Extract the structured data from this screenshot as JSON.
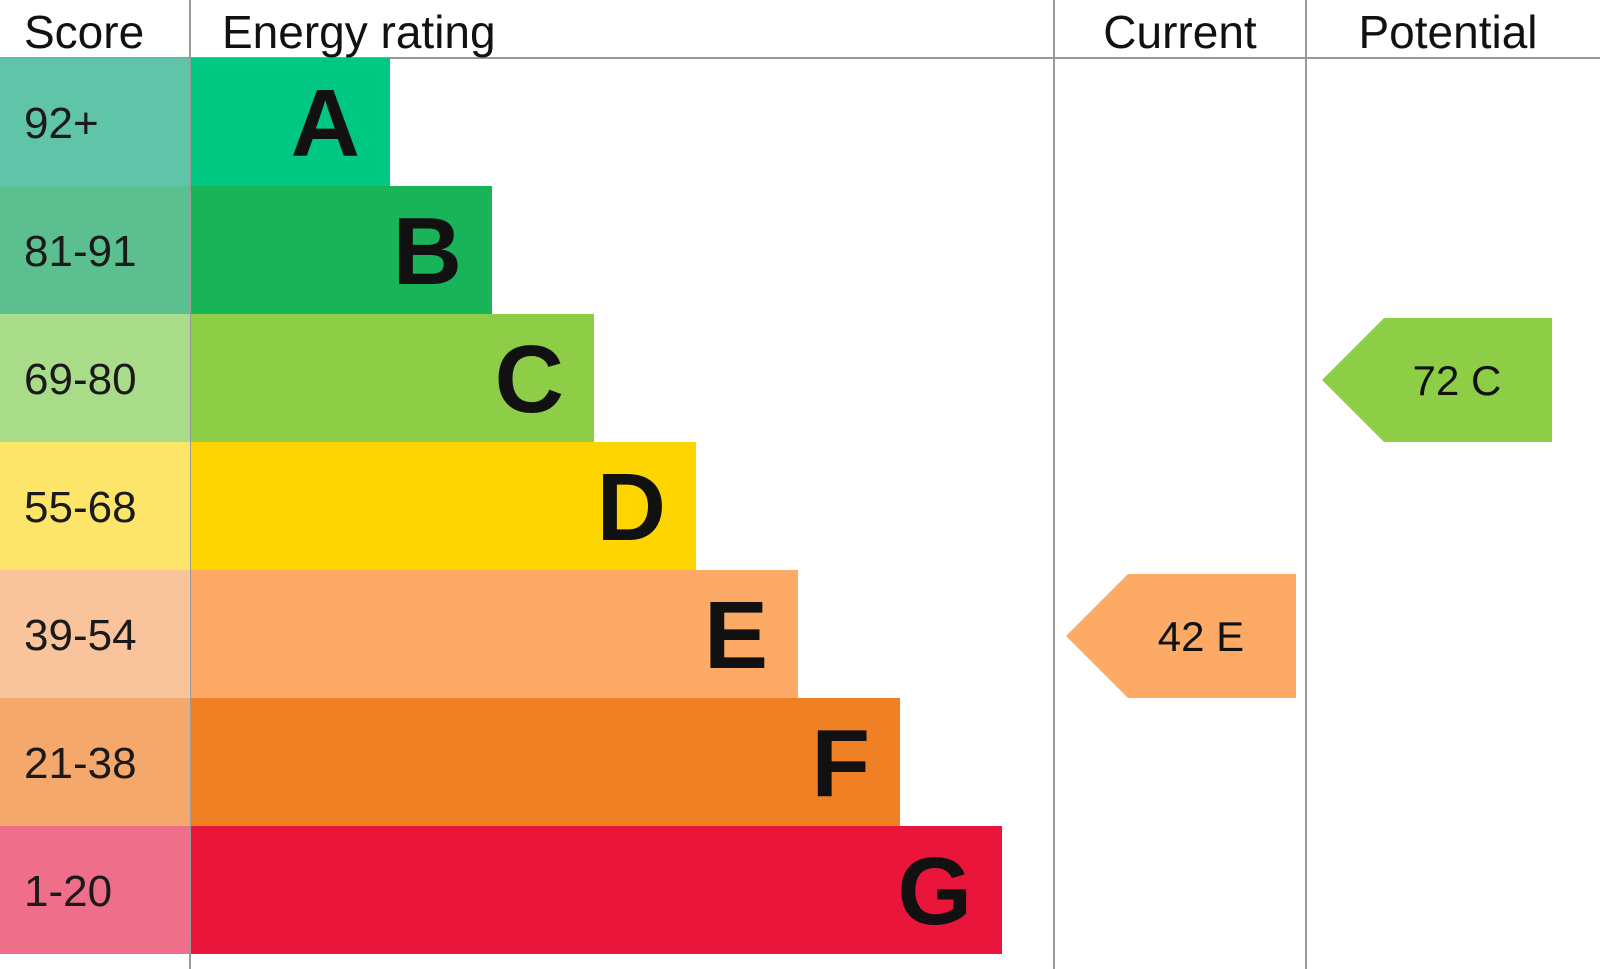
{
  "chart_data": {
    "type": "bar",
    "headers": {
      "score": "Score",
      "rating": "Energy rating",
      "current": "Current",
      "potential": "Potential"
    },
    "bands": [
      {
        "letter": "A",
        "score": "92+",
        "color": "#00c781",
        "tint": "#5fc4a8"
      },
      {
        "letter": "B",
        "score": "81-91",
        "color": "#19b459",
        "tint": "#5cbf8f"
      },
      {
        "letter": "C",
        "score": "69-80",
        "color": "#8dce46",
        "tint": "#a8dc88"
      },
      {
        "letter": "D",
        "score": "55-68",
        "color": "#ffd500",
        "tint": "#fde56a"
      },
      {
        "letter": "E",
        "score": "39-54",
        "color": "#fcaa65",
        "tint": "#f9c39c"
      },
      {
        "letter": "F",
        "score": "21-38",
        "color": "#ef8023",
        "tint": "#f5a86c"
      },
      {
        "letter": "G",
        "score": "1-20",
        "color": "#e9153b",
        "tint": "#ef6f8a"
      }
    ],
    "current": {
      "value": 42,
      "band": "E",
      "label": "42  E"
    },
    "potential": {
      "value": 72,
      "band": "C",
      "label": "72  C"
    }
  }
}
